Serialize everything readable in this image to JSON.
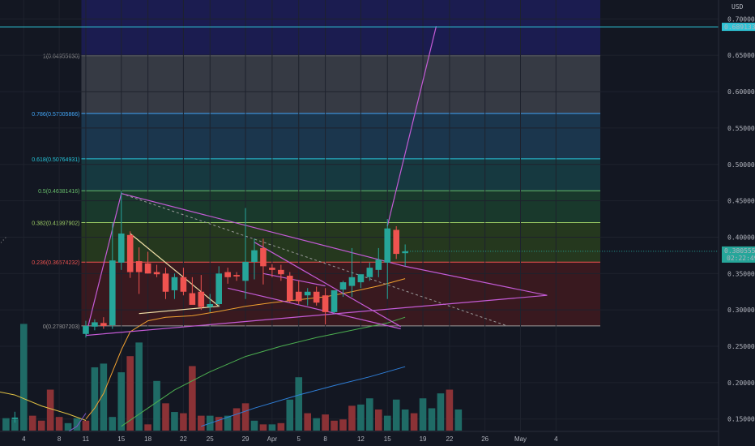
{
  "chart_data": {
    "type": "candlestick",
    "currency_label": "USD",
    "price_axis": {
      "ticks": [
        "0.70000000",
        "0.65000000",
        "0.60000000",
        "0.55000000",
        "0.50000000",
        "0.45000000",
        "0.40000000",
        "0.35000000",
        "0.30000000",
        "0.25000000",
        "0.20000000",
        "0.15000000"
      ],
      "tick_values": [
        0.7,
        0.65,
        0.6,
        0.55,
        0.5,
        0.45,
        0.4,
        0.35,
        0.3,
        0.25,
        0.2,
        0.15
      ],
      "ylim": [
        0.133,
        0.726
      ]
    },
    "time_axis": {
      "labels": [
        "4",
        "8",
        "11",
        "15",
        "18",
        "22",
        "25",
        "29",
        "Apr",
        "5",
        "8",
        "12",
        "15",
        "19",
        "22",
        "26",
        "May",
        "4"
      ],
      "label_bars": [
        -2,
        2,
        5,
        9,
        12,
        16,
        19,
        23,
        26,
        29,
        32,
        36,
        39,
        43,
        46,
        50,
        54,
        58
      ]
    },
    "current_price": {
      "value": 0.3805559,
      "label": "0.38055590",
      "countdown": "02:22:49",
      "color": "#26a69a"
    },
    "horizontal_level": {
      "value": 0.68913339,
      "label": "0.68913339",
      "color": "#2ec4d6"
    },
    "fibonacci": {
      "bars": [
        4.5,
        63
      ],
      "levels": [
        {
          "label": "1(0.64955630)",
          "value": 0.6495563,
          "color": "#9b9b9b",
          "fill": "#3b3e48"
        },
        {
          "label": "0.786(0.57005866)",
          "value": 0.57005866,
          "color": "#42a5f5",
          "fill": "#1d3a52"
        },
        {
          "label": "0.618(0.50764931)",
          "value": 0.50764931,
          "color": "#26c6da",
          "fill": "#173d44"
        },
        {
          "label": "0.5(0.46381416)",
          "value": 0.46381416,
          "color": "#66bb6a",
          "fill": "#1b3d2d"
        },
        {
          "label": "0.382(0.41997902)",
          "value": 0.41997902,
          "color": "#9ccc65",
          "fill": "#283c1e"
        },
        {
          "label": "0.236(0.36574232)",
          "value": 0.36574232,
          "color": "#ef5350",
          "fill": "#3e1a1f"
        },
        {
          "label": "0(0.27807203)",
          "value": 0.27807203,
          "color": "#9b9b9b",
          "fill": "#3e1a1f"
        }
      ],
      "top_band_color": "#1d1d58"
    },
    "candles": [
      {
        "bar": -3,
        "o": 0.15,
        "h": 0.16,
        "l": 0.145,
        "c": 0.152
      },
      {
        "bar": 5,
        "o": 0.267,
        "h": 0.285,
        "l": 0.262,
        "c": 0.278
      },
      {
        "bar": 6,
        "o": 0.277,
        "h": 0.287,
        "l": 0.272,
        "c": 0.283
      },
      {
        "bar": 7,
        "o": 0.282,
        "h": 0.29,
        "l": 0.274,
        "c": 0.278
      },
      {
        "bar": 8,
        "o": 0.279,
        "h": 0.42,
        "l": 0.274,
        "c": 0.368
      },
      {
        "bar": 9,
        "o": 0.365,
        "h": 0.463,
        "l": 0.355,
        "c": 0.405
      },
      {
        "bar": 10,
        "o": 0.403,
        "h": 0.408,
        "l": 0.344,
        "c": 0.352
      },
      {
        "bar": 11,
        "o": 0.367,
        "h": 0.386,
        "l": 0.322,
        "c": 0.352
      },
      {
        "bar": 12,
        "o": 0.364,
        "h": 0.38,
        "l": 0.35,
        "c": 0.35
      },
      {
        "bar": 13,
        "o": 0.352,
        "h": 0.362,
        "l": 0.345,
        "c": 0.349
      },
      {
        "bar": 14,
        "o": 0.35,
        "h": 0.358,
        "l": 0.315,
        "c": 0.325
      },
      {
        "bar": 15,
        "o": 0.327,
        "h": 0.35,
        "l": 0.315,
        "c": 0.345
      },
      {
        "bar": 16,
        "o": 0.345,
        "h": 0.358,
        "l": 0.32,
        "c": 0.325
      },
      {
        "bar": 17,
        "o": 0.323,
        "h": 0.345,
        "l": 0.31,
        "c": 0.307
      },
      {
        "bar": 18,
        "o": 0.325,
        "h": 0.348,
        "l": 0.3,
        "c": 0.304
      },
      {
        "bar": 19,
        "o": 0.304,
        "h": 0.322,
        "l": 0.297,
        "c": 0.308
      },
      {
        "bar": 20,
        "o": 0.308,
        "h": 0.36,
        "l": 0.305,
        "c": 0.35
      },
      {
        "bar": 21,
        "o": 0.352,
        "h": 0.358,
        "l": 0.336,
        "c": 0.345
      },
      {
        "bar": 22,
        "o": 0.348,
        "h": 0.352,
        "l": 0.34,
        "c": 0.346
      },
      {
        "bar": 23,
        "o": 0.34,
        "h": 0.44,
        "l": 0.315,
        "c": 0.366
      },
      {
        "bar": 24,
        "o": 0.366,
        "h": 0.398,
        "l": 0.342,
        "c": 0.382
      },
      {
        "bar": 25,
        "o": 0.385,
        "h": 0.398,
        "l": 0.335,
        "c": 0.36
      },
      {
        "bar": 26,
        "o": 0.358,
        "h": 0.363,
        "l": 0.345,
        "c": 0.355
      },
      {
        "bar": 27,
        "o": 0.355,
        "h": 0.362,
        "l": 0.34,
        "c": 0.349
      },
      {
        "bar": 28,
        "o": 0.347,
        "h": 0.352,
        "l": 0.31,
        "c": 0.313
      },
      {
        "bar": 29,
        "o": 0.325,
        "h": 0.34,
        "l": 0.308,
        "c": 0.312
      },
      {
        "bar": 30,
        "o": 0.32,
        "h": 0.33,
        "l": 0.306,
        "c": 0.325
      },
      {
        "bar": 31,
        "o": 0.325,
        "h": 0.332,
        "l": 0.306,
        "c": 0.31
      },
      {
        "bar": 32,
        "o": 0.32,
        "h": 0.33,
        "l": 0.28,
        "c": 0.297
      },
      {
        "bar": 33,
        "o": 0.297,
        "h": 0.325,
        "l": 0.295,
        "c": 0.327
      },
      {
        "bar": 34,
        "o": 0.328,
        "h": 0.34,
        "l": 0.318,
        "c": 0.338
      },
      {
        "bar": 35,
        "o": 0.333,
        "h": 0.385,
        "l": 0.318,
        "c": 0.345
      },
      {
        "bar": 36,
        "o": 0.338,
        "h": 0.346,
        "l": 0.33,
        "c": 0.349
      },
      {
        "bar": 37,
        "o": 0.345,
        "h": 0.365,
        "l": 0.34,
        "c": 0.358
      },
      {
        "bar": 38,
        "o": 0.355,
        "h": 0.385,
        "l": 0.345,
        "c": 0.369
      },
      {
        "bar": 39,
        "o": 0.365,
        "h": 0.425,
        "l": 0.315,
        "c": 0.412
      },
      {
        "bar": 40,
        "o": 0.41,
        "h": 0.415,
        "l": 0.37,
        "c": 0.377
      },
      {
        "bar": 41,
        "o": 0.378,
        "h": 0.39,
        "l": 0.36,
        "c": 0.3806
      }
    ],
    "volume": [
      {
        "bar": -4,
        "v": 10,
        "up": true
      },
      {
        "bar": -3,
        "v": 9,
        "up": true
      },
      {
        "bar": -2,
        "v": 86,
        "up": true
      },
      {
        "bar": -1,
        "v": 12,
        "up": false
      },
      {
        "bar": 0,
        "v": 8,
        "up": false
      },
      {
        "bar": 1,
        "v": 33,
        "up": false
      },
      {
        "bar": 2,
        "v": 11,
        "up": false
      },
      {
        "bar": 3,
        "v": 6,
        "up": true
      },
      {
        "bar": 4,
        "v": 10,
        "up": true
      },
      {
        "bar": 5,
        "v": 8,
        "up": false
      },
      {
        "bar": 6,
        "v": 51,
        "up": true
      },
      {
        "bar": 7,
        "v": 54,
        "up": true
      },
      {
        "bar": 8,
        "v": 11,
        "up": true
      },
      {
        "bar": 9,
        "v": 47,
        "up": true
      },
      {
        "bar": 10,
        "v": 60,
        "up": false
      },
      {
        "bar": 11,
        "v": 71,
        "up": true
      },
      {
        "bar": 12,
        "v": 5,
        "up": false
      },
      {
        "bar": 13,
        "v": 40,
        "up": true
      },
      {
        "bar": 14,
        "v": 22,
        "up": false
      },
      {
        "bar": 15,
        "v": 15,
        "up": true
      },
      {
        "bar": 16,
        "v": 14,
        "up": false
      },
      {
        "bar": 17,
        "v": 52,
        "up": false
      },
      {
        "bar": 18,
        "v": 12,
        "up": false
      },
      {
        "bar": 19,
        "v": 12,
        "up": true
      },
      {
        "bar": 20,
        "v": 11,
        "up": false
      },
      {
        "bar": 21,
        "v": 12,
        "up": true
      },
      {
        "bar": 22,
        "v": 18,
        "up": false
      },
      {
        "bar": 23,
        "v": 22,
        "up": false
      },
      {
        "bar": 24,
        "v": 8,
        "up": true
      },
      {
        "bar": 25,
        "v": 5,
        "up": false
      },
      {
        "bar": 26,
        "v": 5,
        "up": true
      },
      {
        "bar": 27,
        "v": 6,
        "up": false
      },
      {
        "bar": 28,
        "v": 25,
        "up": true
      },
      {
        "bar": 29,
        "v": 43,
        "up": true
      },
      {
        "bar": 30,
        "v": 14,
        "up": false
      },
      {
        "bar": 31,
        "v": 10,
        "up": true
      },
      {
        "bar": 32,
        "v": 13,
        "up": false
      },
      {
        "bar": 33,
        "v": 8,
        "up": false
      },
      {
        "bar": 34,
        "v": 9,
        "up": false
      },
      {
        "bar": 35,
        "v": 20,
        "up": false
      },
      {
        "bar": 36,
        "v": 21,
        "up": true
      },
      {
        "bar": 37,
        "v": 26,
        "up": true
      },
      {
        "bar": 38,
        "v": 17,
        "up": false
      },
      {
        "bar": 39,
        "v": 12,
        "up": true
      },
      {
        "bar": 40,
        "v": 25,
        "up": true
      },
      {
        "bar": 41,
        "v": 17,
        "up": true
      },
      {
        "bar": 42,
        "v": 14,
        "up": false
      },
      {
        "bar": 43,
        "v": 26,
        "up": true
      },
      {
        "bar": 44,
        "v": 18,
        "up": true
      },
      {
        "bar": 45,
        "v": 30,
        "up": true
      },
      {
        "bar": 46,
        "v": 33,
        "up": false
      },
      {
        "bar": 47,
        "v": 17,
        "up": true
      }
    ],
    "colors": {
      "up": "#26a69a",
      "down": "#ef5350",
      "vol_up": "#1f6b66",
      "vol_down": "#8b3236"
    },
    "moving_averages": [
      {
        "color": "#f0a030",
        "points": [
          [
            5,
            0.15
          ],
          [
            6,
            0.165
          ],
          [
            7,
            0.185
          ],
          [
            8,
            0.215
          ],
          [
            9,
            0.245
          ],
          [
            10,
            0.27
          ],
          [
            12,
            0.285
          ],
          [
            14,
            0.29
          ],
          [
            17,
            0.292
          ],
          [
            20,
            0.298
          ],
          [
            23,
            0.305
          ],
          [
            26,
            0.31
          ],
          [
            29,
            0.314
          ],
          [
            32,
            0.318
          ],
          [
            35,
            0.325
          ],
          [
            38,
            0.333
          ],
          [
            41,
            0.343
          ]
        ]
      },
      {
        "color": "#4caf50",
        "points": [
          [
            9,
            0.14
          ],
          [
            12,
            0.165
          ],
          [
            15,
            0.19
          ],
          [
            19,
            0.215
          ],
          [
            23,
            0.236
          ],
          [
            27,
            0.25
          ],
          [
            31,
            0.262
          ],
          [
            35,
            0.272
          ],
          [
            39,
            0.282
          ],
          [
            41,
            0.29
          ]
        ]
      },
      {
        "color": "#2f7fd8",
        "points": [
          [
            18,
            0.14
          ],
          [
            24,
            0.165
          ],
          [
            29,
            0.183
          ],
          [
            33,
            0.196
          ],
          [
            37,
            0.208
          ],
          [
            41,
            0.222
          ]
        ]
      },
      {
        "color": "#e2c244",
        "points": [
          [
            -5,
            0.188
          ],
          [
            -3,
            0.183
          ],
          [
            0,
            0.168
          ],
          [
            3,
            0.157
          ],
          [
            5,
            0.148
          ]
        ]
      },
      {
        "color": "#7e57c2",
        "points": [
          [
            2,
            0.125
          ],
          [
            4,
            0.14
          ],
          [
            5,
            0.158
          ]
        ]
      }
    ],
    "drawings": [
      {
        "color": "#c45bd6",
        "points": [
          [
            5,
            0.265
          ],
          [
            9,
            0.46
          ],
          [
            41,
            0.36
          ],
          [
            57,
            0.32
          ],
          [
            5,
            0.265
          ]
        ]
      },
      {
        "color": "#c45bd6",
        "points": [
          [
            39,
            0.415
          ],
          [
            44.5,
            0.69
          ]
        ]
      },
      {
        "color": "#c45bd6",
        "points": [
          [
            21,
            0.33
          ],
          [
            40.5,
            0.274
          ]
        ]
      },
      {
        "color": "#c45bd6",
        "points": [
          [
            24,
            0.393
          ],
          [
            40.5,
            0.277
          ]
        ]
      },
      {
        "color": "#f2e0a8",
        "points": [
          [
            10,
            0.405
          ],
          [
            20,
            0.305
          ],
          [
            11,
            0.295
          ]
        ]
      },
      {
        "color": "#c45bd6",
        "points": [
          [
            25,
            0.35
          ],
          [
            32,
            0.333
          ]
        ]
      }
    ],
    "dashed_line": {
      "color": "#9b9b9b",
      "points": [
        [
          9,
          0.46
        ],
        [
          52.5,
          0.278
        ]
      ]
    },
    "left_dotted": {
      "color": "#9b9b9b",
      "points": [
        [
          -10,
          0.32
        ],
        [
          -4,
          0.4
        ]
      ]
    }
  }
}
